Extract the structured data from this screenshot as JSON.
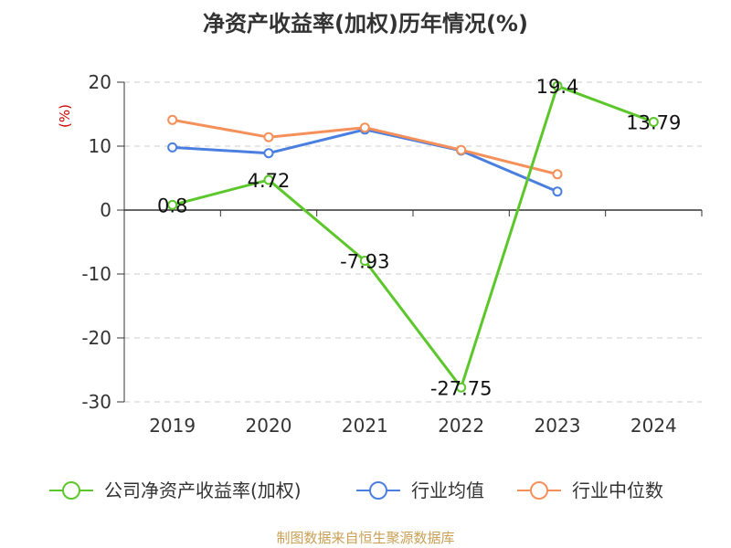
{
  "chart_data": {
    "type": "line",
    "title": "净资产收益率(加权)历年情况(%)",
    "y_unit": "(%)",
    "categories": [
      "2019",
      "2020",
      "2021",
      "2022",
      "2023",
      "2024"
    ],
    "ylim": [
      -30,
      20
    ],
    "yticks": [
      20,
      10,
      0,
      -10,
      -20,
      -30
    ],
    "ytick_labels": [
      "20",
      "10",
      "0",
      "-10",
      "-20",
      "-30"
    ],
    "grid": true,
    "legend_position": "bottom",
    "series": [
      {
        "name": "公司净资产收益率(加权)",
        "color": "#5cc72a",
        "values": [
          0.8,
          4.72,
          -7.93,
          -27.75,
          19.4,
          13.79
        ],
        "labels": [
          "0.8",
          "4.72",
          "-7.93",
          "-27.75",
          "19.4",
          "13.79"
        ]
      },
      {
        "name": "行业均值",
        "color": "#4a7fe0",
        "values": [
          9.8,
          8.9,
          12.6,
          9.3,
          2.9,
          null
        ],
        "labels": []
      },
      {
        "name": "行业中位数",
        "color": "#f5905a",
        "values": [
          14.1,
          11.4,
          12.9,
          9.4,
          5.6,
          null
        ],
        "labels": []
      }
    ],
    "source_note": "制图数据来自恒生聚源数据库"
  }
}
